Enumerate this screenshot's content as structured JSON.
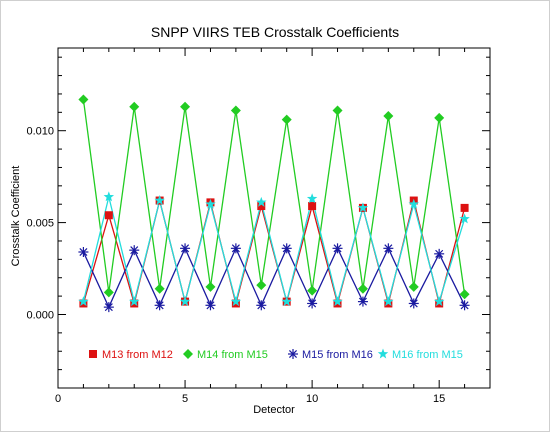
{
  "chart_data": {
    "type": "line",
    "title": "SNPP VIIRS TEB Crosstalk Coefficients",
    "xlabel": "Detector",
    "ylabel": "Crosstalk Coefficient",
    "xlim": [
      0,
      17
    ],
    "ylim": [
      -0.004,
      0.0145
    ],
    "xticks": [
      0,
      5,
      10,
      15
    ],
    "xtick_labels": [
      "0",
      "5",
      "10",
      "15"
    ],
    "yticks": [
      0.0,
      0.005,
      0.01
    ],
    "ytick_labels": [
      "0.000",
      "0.005",
      "0.010"
    ],
    "grid": false,
    "legend_position": "bottom",
    "x": [
      1,
      2,
      3,
      4,
      5,
      6,
      7,
      8,
      9,
      10,
      11,
      12,
      13,
      14,
      15,
      16
    ],
    "series": [
      {
        "name": "M13 from M12",
        "color": "#dd1111",
        "marker": "square",
        "values": [
          0.0006,
          0.0054,
          0.0006,
          0.0062,
          0.0007,
          0.0061,
          0.0006,
          0.0059,
          0.0007,
          0.0059,
          0.0006,
          0.0058,
          0.0006,
          0.0062,
          0.0006,
          0.0058
        ]
      },
      {
        "name": "M14 from M15",
        "color": "#22cc22",
        "marker": "diamond",
        "values": [
          0.0117,
          0.0012,
          0.0113,
          0.0014,
          0.0113,
          0.0015,
          0.0111,
          0.0016,
          0.0106,
          0.0013,
          0.0111,
          0.0014,
          0.0108,
          0.0015,
          0.0107,
          0.0011
        ]
      },
      {
        "name": "M15 from M16",
        "color": "#1a1aa0",
        "marker": "asterisk",
        "values": [
          0.0034,
          0.0004,
          0.0035,
          0.0005,
          0.0036,
          0.0005,
          0.0036,
          0.0005,
          0.0036,
          0.0006,
          0.0036,
          0.0007,
          0.0036,
          0.0006,
          0.0033,
          0.0005
        ]
      },
      {
        "name": "M16 from M15",
        "color": "#22dddd",
        "marker": "star",
        "values": [
          0.0007,
          0.0064,
          0.0007,
          0.0062,
          0.0007,
          0.006,
          0.0007,
          0.0061,
          0.0007,
          0.0063,
          0.0007,
          0.0058,
          0.0007,
          0.006,
          0.0007,
          0.0052
        ]
      }
    ]
  }
}
